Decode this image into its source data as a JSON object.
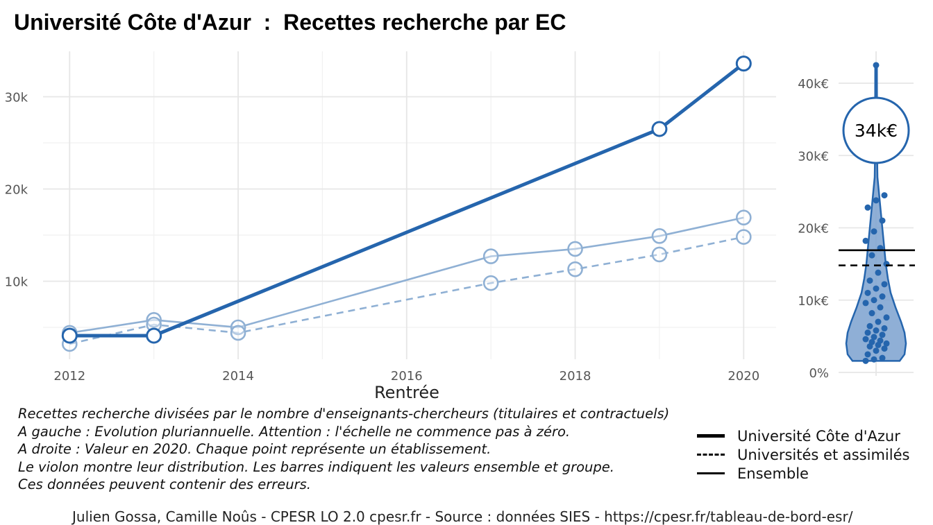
{
  "chart_data": [
    {
      "type": "line",
      "title": "Université Côte d'Azur  :  Recettes recherche par EC",
      "xlabel": "Rentrée",
      "ylabel": "",
      "xlim": [
        2012,
        2020
      ],
      "ylim": [
        2000,
        34000
      ],
      "x_ticks": [
        2012,
        2014,
        2016,
        2018,
        2020
      ],
      "x_tick_labels": [
        "2012",
        "2014",
        "2016",
        "2018",
        "2020"
      ],
      "y_ticks": [
        10000,
        20000,
        30000
      ],
      "y_tick_labels": [
        "10k",
        "20k",
        "30k"
      ],
      "grid": true,
      "series": [
        {
          "name": "Université Côte d'Azur",
          "style": "solid-bold",
          "color": "#2565ad",
          "x": [
            2012,
            2013,
            2019,
            2020
          ],
          "values": [
            4100,
            4100,
            26500,
            33600
          ]
        },
        {
          "name": "Universités et assimilés",
          "style": "dashed",
          "color": "#8fb0d4",
          "x": [
            2012,
            2013,
            2014,
            2017,
            2018,
            2019,
            2020
          ],
          "values": [
            3200,
            5300,
            4400,
            9800,
            11300,
            12900,
            14800
          ]
        },
        {
          "name": "Ensemble",
          "style": "solid",
          "color": "#8fb0d4",
          "x": [
            2012,
            2013,
            2014,
            2017,
            2018,
            2019,
            2020
          ],
          "values": [
            4400,
            5800,
            5000,
            12700,
            13500,
            14900,
            16900
          ]
        }
      ]
    },
    {
      "type": "violin",
      "ylim": [
        0,
        42000
      ],
      "y_ticks": [
        0,
        10000,
        20000,
        30000,
        40000
      ],
      "y_tick_labels": [
        "0%",
        "10k€",
        "20k€",
        "30k€",
        "40k€"
      ],
      "highlight": {
        "value": 34000,
        "label": "34k€",
        "color": "#2565ad"
      },
      "max_point": 42500,
      "reference_lines": [
        {
          "name": "Ensemble",
          "value": 16900,
          "style": "solid"
        },
        {
          "name": "Universités et assimilés",
          "value": 14800,
          "style": "dashed"
        }
      ],
      "points": [
        1600,
        1800,
        2000,
        2500,
        3000,
        3300,
        3600,
        3800,
        4000,
        4200,
        4400,
        4600,
        4900,
        5200,
        5500,
        5800,
        6100,
        6400,
        7000,
        7600,
        8200,
        9000,
        9600,
        10000,
        10500,
        11000,
        11600,
        12200,
        12700,
        13800,
        15000,
        16200,
        17200,
        18200,
        19500,
        21000,
        22800,
        23800,
        24500
      ]
    }
  ],
  "notes": [
    "Recettes recherche divisées par le nombre d'enseignants-chercheurs (titulaires et contractuels)",
    "A gauche : Evolution pluriannuelle. Attention : l'échelle ne commence pas à zéro.",
    "A droite : Valeur en 2020. Chaque point représente un établissement.",
    "Le violon montre leur distribution. Les barres indiquent les valeurs ensemble et groupe.",
    "Ces données peuvent contenir des erreurs."
  ],
  "legend": {
    "items": [
      {
        "label": "Université Côte d'Azur",
        "style": "bold"
      },
      {
        "label": "Universités et assimilés",
        "style": "dashed"
      },
      {
        "label": "Ensemble",
        "style": "solid"
      }
    ]
  },
  "caption": "Julien Gossa, Camille Noûs - CPESR LO 2.0 cpesr.fr - Source : données SIES - https://cpesr.fr/tableau-de-bord-esr/"
}
